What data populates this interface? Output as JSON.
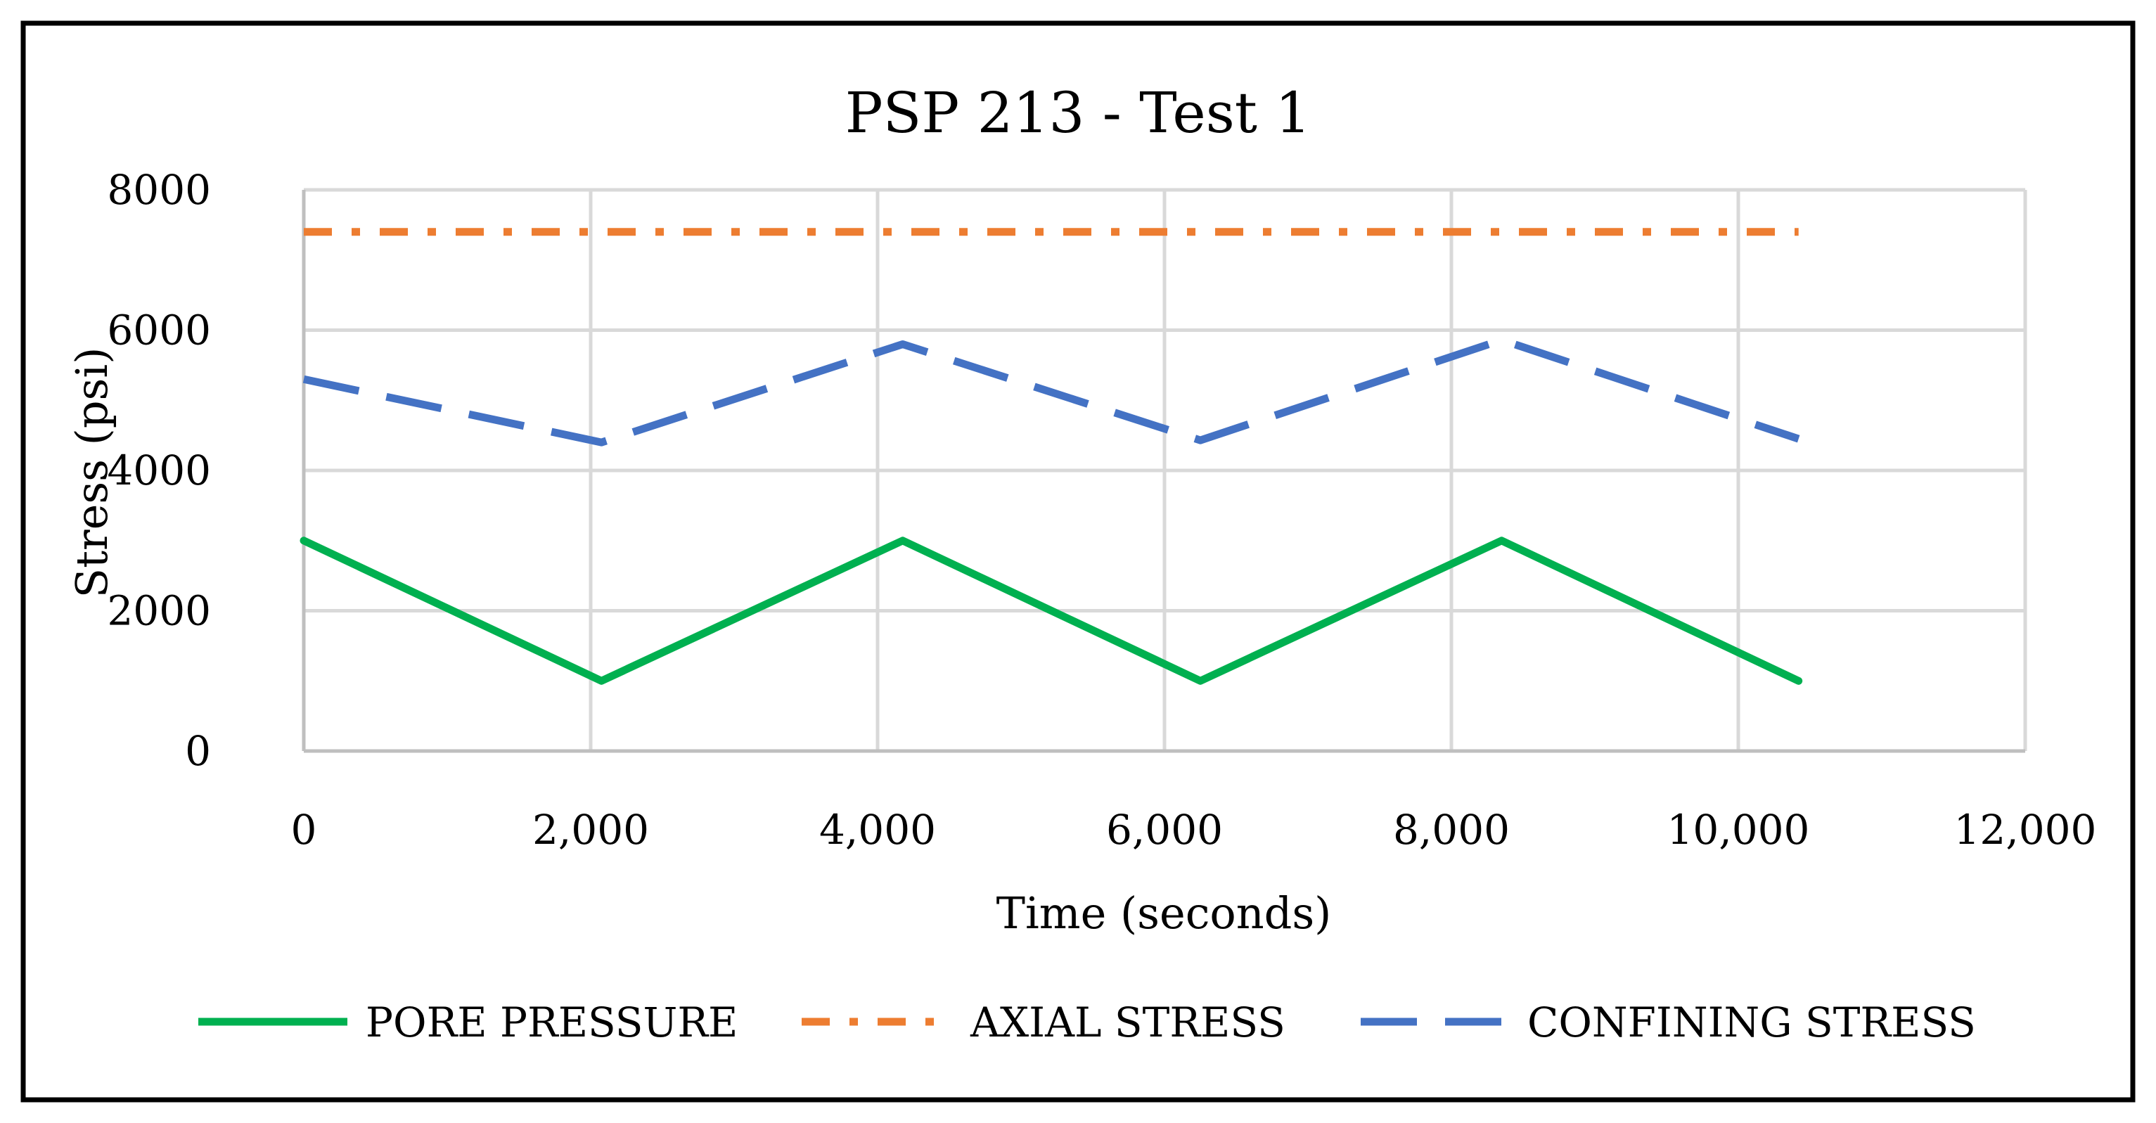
{
  "chart_data": {
    "type": "line",
    "title": "PSP 213 - Test 1",
    "xlabel": "Time (seconds)",
    "ylabel": "Stress (psi)",
    "xlim": [
      0,
      12000
    ],
    "ylim": [
      0,
      8000
    ],
    "xticks": [
      0,
      2000,
      4000,
      6000,
      8000,
      10000,
      12000
    ],
    "xtick_labels": [
      "0",
      "2,000",
      "4,000",
      "6,000",
      "8,000",
      "10,000",
      "12,000"
    ],
    "yticks": [
      0,
      2000,
      4000,
      6000,
      8000
    ],
    "ytick_labels": [
      "0",
      "2000",
      "4000",
      "6000",
      "8000"
    ],
    "grid": true,
    "legend_position": "bottom",
    "series": [
      {
        "name": "PORE PRESSURE",
        "color": "#00b050",
        "style": "solid",
        "x": [
          0,
          2075,
          4175,
          6250,
          8350,
          10420
        ],
        "y": [
          3000,
          1000,
          3000,
          1000,
          3000,
          1000
        ]
      },
      {
        "name": "AXIAL STRESS",
        "color": "#ed7d31",
        "style": "dash-dot",
        "x": [
          0,
          10420
        ],
        "y": [
          7400,
          7400
        ]
      },
      {
        "name": "CONFINING STRESS",
        "color": "#4472c4",
        "style": "dashed",
        "x": [
          0,
          2075,
          4175,
          6250,
          8350,
          10420
        ],
        "y": [
          5300,
          4400,
          5800,
          4430,
          5860,
          4450
        ]
      }
    ]
  }
}
